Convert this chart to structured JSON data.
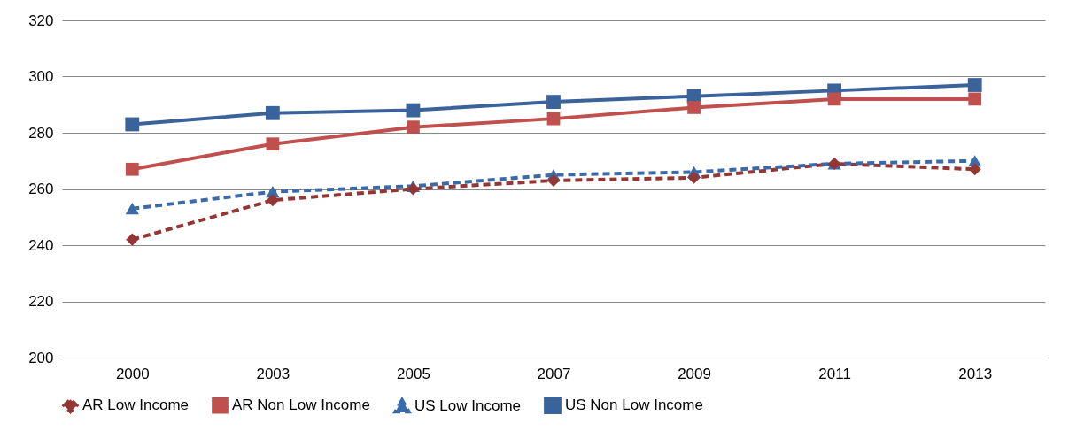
{
  "chart_data": {
    "type": "line",
    "categories": [
      "2000",
      "2003",
      "2005",
      "2007",
      "2009",
      "2011",
      "2013"
    ],
    "series": [
      {
        "name": "AR Low Income",
        "color": "#943634",
        "marker": "diamond",
        "line_style": "dashed",
        "values": [
          242,
          256,
          260,
          263,
          264,
          269,
          267
        ]
      },
      {
        "name": "AR Non Low Income",
        "color": "#c0504d",
        "marker": "square",
        "line_style": "solid",
        "values": [
          267,
          276,
          282,
          285,
          289,
          292,
          292
        ]
      },
      {
        "name": "US Low Income",
        "color": "#3a6aa8",
        "marker": "triangle",
        "line_style": "dashed",
        "values": [
          253,
          259,
          261,
          265,
          266,
          269,
          270
        ]
      },
      {
        "name": "US Non Low Income",
        "color": "#3a639c",
        "marker": "square",
        "line_style": "solid",
        "values": [
          283,
          287,
          288,
          291,
          293,
          295,
          297
        ]
      }
    ],
    "ylim": [
      200,
      320
    ],
    "yticks": [
      200,
      220,
      240,
      260,
      280,
      300,
      320
    ],
    "grid": "y",
    "legend": "bottom"
  }
}
